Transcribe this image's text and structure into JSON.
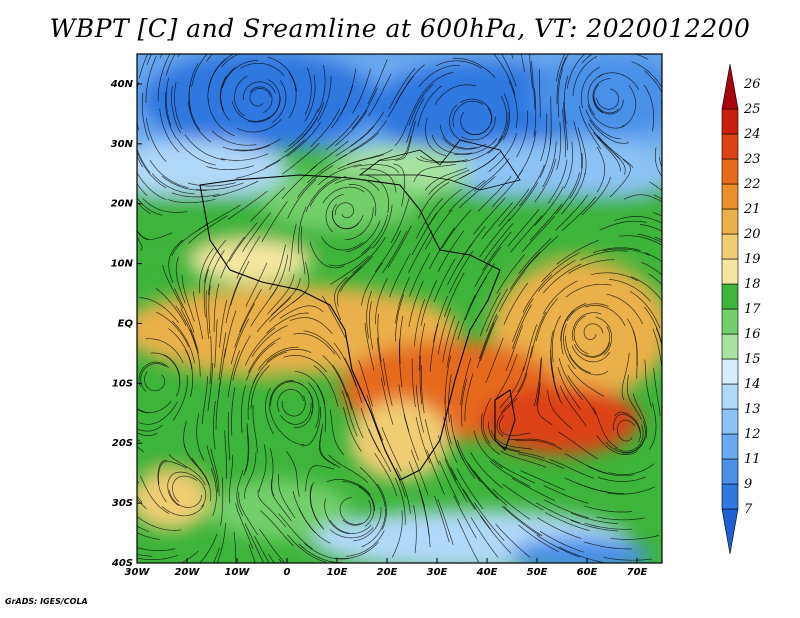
{
  "title": "WBPT [C] and Sreamline at 600hPa, VT: 2020012200",
  "credit": "GrADS: IGES/COLA",
  "map": {
    "lon_range": [
      -30,
      75
    ],
    "lat_range": [
      -40,
      45
    ],
    "x_ticks": [
      "30W",
      "20W",
      "10W",
      "0",
      "10E",
      "20E",
      "30E",
      "40E",
      "50E",
      "60E",
      "70E"
    ],
    "y_ticks": [
      "40N",
      "30N",
      "20N",
      "10N",
      "EQ",
      "10S",
      "20S",
      "30S",
      "40S"
    ]
  },
  "colorbar": {
    "labels": [
      "7",
      "9",
      "11",
      "12",
      "13",
      "14",
      "15",
      "16",
      "17",
      "18",
      "19",
      "20",
      "21",
      "22",
      "23",
      "24",
      "25",
      "26"
    ],
    "colors": [
      "#1f5fd6",
      "#2f78e0",
      "#4a90e8",
      "#6aa8ef",
      "#8cc2f4",
      "#b0d8f8",
      "#d6eefb",
      "#a9e3a1",
      "#73cf6b",
      "#3db43a",
      "#f4e6a0",
      "#f0cd73",
      "#eab04a",
      "#ea8f2a",
      "#e66a1c",
      "#dc4314",
      "#c8200c",
      "#a8060a"
    ]
  }
}
